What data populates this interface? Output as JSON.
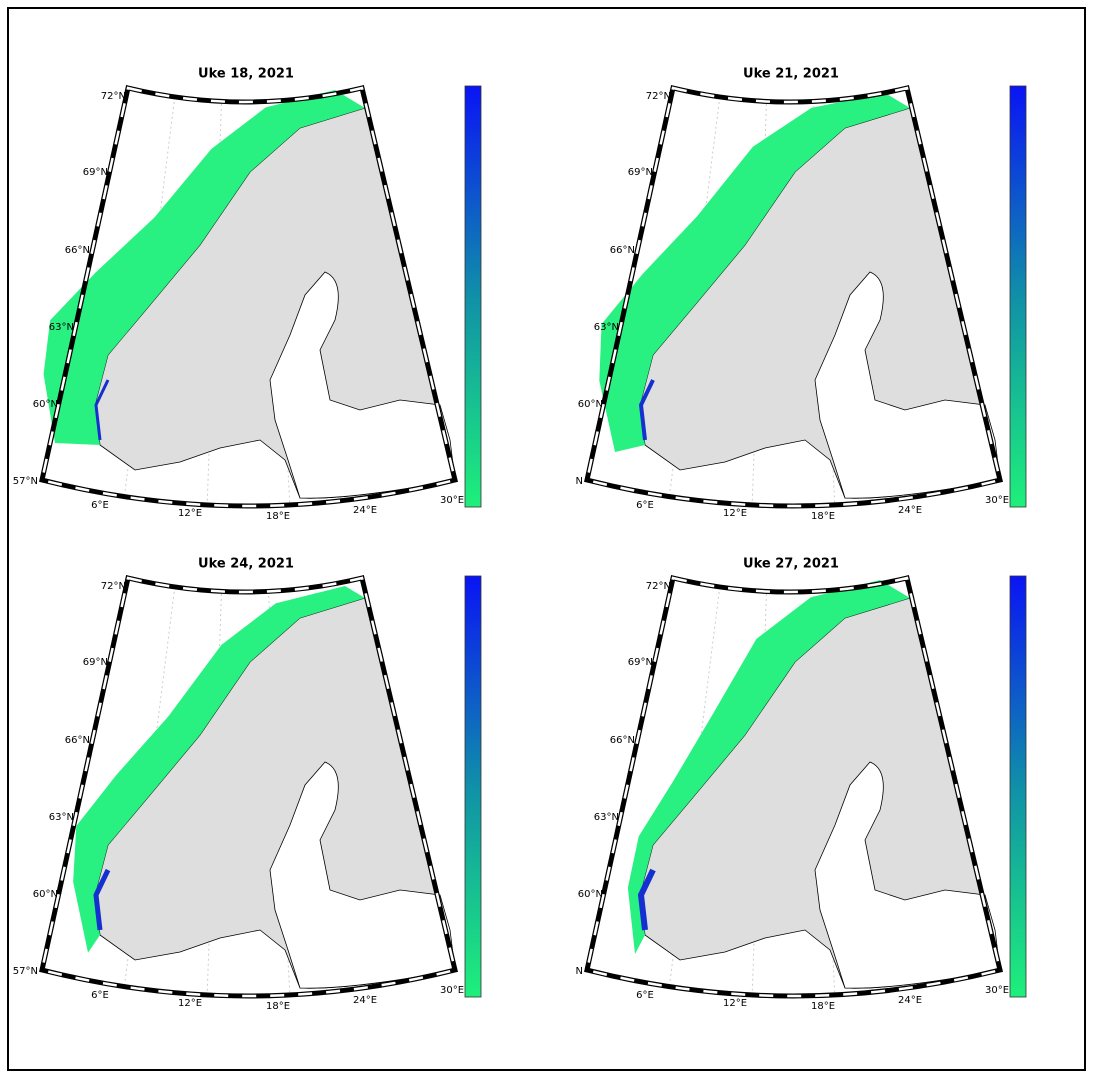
{
  "panels": [
    {
      "title": "Uke 18, 2021",
      "lat_labels": [
        "72°N",
        "69°N",
        "66°N",
        "63°N",
        "60°N",
        "57°N"
      ],
      "lon_labels": [
        "6°E",
        "12°E",
        "18°E",
        "24°E",
        "30°E"
      ]
    },
    {
      "title": "Uke 21, 2021",
      "lat_labels": [
        "72°N",
        "69°N",
        "66°N",
        "63°N",
        "60°N",
        "N"
      ],
      "lon_labels": [
        "6°E",
        "12°E",
        "18°E",
        "24°E",
        "30°E"
      ]
    },
    {
      "title": "Uke 24, 2021",
      "lat_labels": [
        "72°N",
        "69°N",
        "66°N",
        "63°N",
        "60°N",
        "57°N"
      ],
      "lon_labels": [
        "6°E",
        "12°E",
        "18°E",
        "24°E",
        "30°E"
      ]
    },
    {
      "title": "Uke 27, 2021",
      "lat_labels": [
        "72°N",
        "69°N",
        "66°N",
        "63°N",
        "60°N",
        "N"
      ],
      "lon_labels": [
        "6°E",
        "12°E",
        "18°E",
        "24°E",
        "30°E"
      ]
    }
  ]
}
